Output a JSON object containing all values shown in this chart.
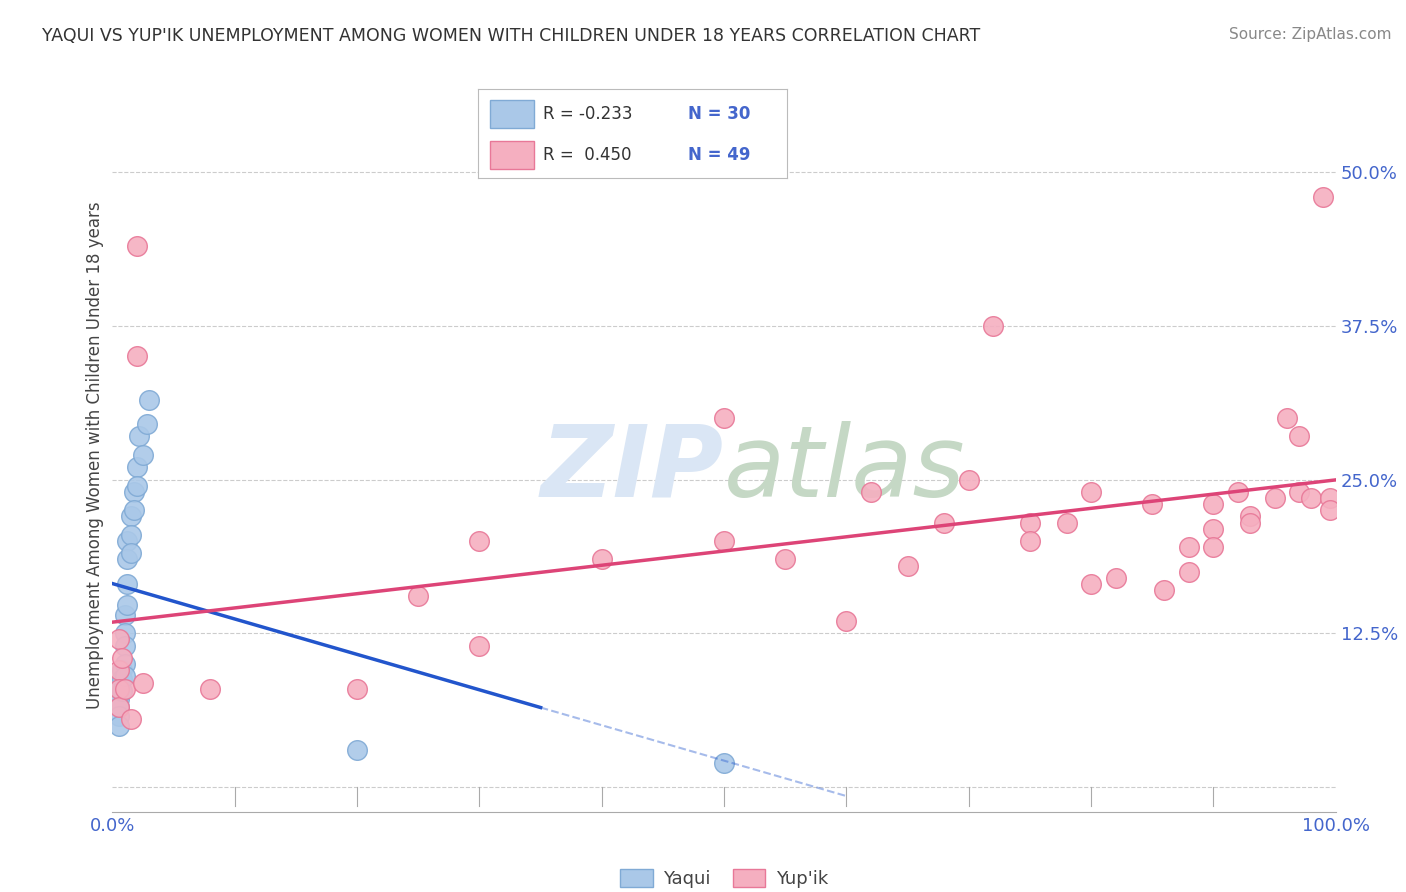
{
  "title": "YAQUI VS YUP'IK UNEMPLOYMENT AMONG WOMEN WITH CHILDREN UNDER 18 YEARS CORRELATION CHART",
  "source": "Source: ZipAtlas.com",
  "ylabel": "Unemployment Among Women with Children Under 18 years",
  "ytick_values": [
    0.0,
    0.125,
    0.25,
    0.375,
    0.5
  ],
  "xlim": [
    0.0,
    1.0
  ],
  "ylim": [
    -0.02,
    0.56
  ],
  "yaqui_color": "#aac8e8",
  "yupik_color": "#f5afc0",
  "yaqui_edge": "#80aad5",
  "yupik_edge": "#e87898",
  "trend_yaqui_color": "#2255cc",
  "trend_yupik_color": "#dd4477",
  "background_color": "#ffffff",
  "watermark_color": "#dae6f5",
  "grid_color": "#cccccc",
  "title_color": "#333333",
  "axis_label_color": "#4466cc",
  "source_color": "#888888",
  "yaqui_x": [
    0.005,
    0.005,
    0.005,
    0.005,
    0.005,
    0.008,
    0.008,
    0.008,
    0.01,
    0.01,
    0.01,
    0.01,
    0.01,
    0.012,
    0.012,
    0.012,
    0.012,
    0.015,
    0.015,
    0.015,
    0.018,
    0.018,
    0.02,
    0.02,
    0.022,
    0.025,
    0.028,
    0.03,
    0.2,
    0.5
  ],
  "yaqui_y": [
    0.08,
    0.072,
    0.065,
    0.058,
    0.05,
    0.095,
    0.088,
    0.078,
    0.14,
    0.125,
    0.115,
    0.1,
    0.09,
    0.2,
    0.185,
    0.165,
    0.148,
    0.22,
    0.205,
    0.19,
    0.24,
    0.225,
    0.26,
    0.245,
    0.285,
    0.27,
    0.295,
    0.315,
    0.03,
    0.02
  ],
  "yupik_x": [
    0.005,
    0.005,
    0.005,
    0.005,
    0.008,
    0.01,
    0.015,
    0.02,
    0.02,
    0.025,
    0.08,
    0.2,
    0.25,
    0.3,
    0.3,
    0.4,
    0.5,
    0.5,
    0.55,
    0.6,
    0.62,
    0.65,
    0.68,
    0.7,
    0.72,
    0.75,
    0.75,
    0.78,
    0.8,
    0.8,
    0.82,
    0.85,
    0.86,
    0.88,
    0.88,
    0.9,
    0.9,
    0.9,
    0.92,
    0.93,
    0.93,
    0.95,
    0.96,
    0.97,
    0.97,
    0.98,
    0.99,
    0.995,
    0.995
  ],
  "yupik_y": [
    0.12,
    0.095,
    0.08,
    0.065,
    0.105,
    0.08,
    0.055,
    0.44,
    0.35,
    0.085,
    0.08,
    0.08,
    0.155,
    0.2,
    0.115,
    0.185,
    0.3,
    0.2,
    0.185,
    0.135,
    0.24,
    0.18,
    0.215,
    0.25,
    0.375,
    0.215,
    0.2,
    0.215,
    0.165,
    0.24,
    0.17,
    0.23,
    0.16,
    0.195,
    0.175,
    0.23,
    0.21,
    0.195,
    0.24,
    0.22,
    0.215,
    0.235,
    0.3,
    0.285,
    0.24,
    0.235,
    0.48,
    0.235,
    0.225
  ]
}
